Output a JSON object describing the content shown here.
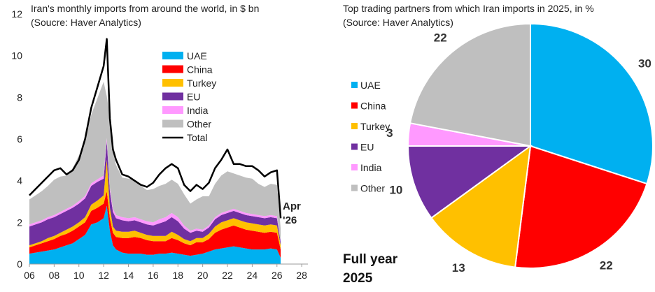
{
  "chart_data": [
    {
      "type": "area",
      "title_line1": "Iran's  monthly imports from around the world, in $ bn",
      "title_line2": "(Soucre: Haver Analytics)",
      "xlabel": "",
      "ylabel": "",
      "ylim": [
        0,
        12
      ],
      "xlim": [
        2006,
        2028.5
      ],
      "y_ticks": [
        0,
        2,
        4,
        6,
        8,
        10,
        12
      ],
      "x_ticks": [
        {
          "v": 2006,
          "label": "06"
        },
        {
          "v": 2008,
          "label": "08"
        },
        {
          "v": 2010,
          "label": "10"
        },
        {
          "v": 2012,
          "label": "12"
        },
        {
          "v": 2014,
          "label": "14"
        },
        {
          "v": 2016,
          "label": "16"
        },
        {
          "v": 2018,
          "label": "18"
        },
        {
          "v": 2020,
          "label": "20"
        },
        {
          "v": 2022,
          "label": "22"
        },
        {
          "v": 2024,
          "label": "24"
        },
        {
          "v": 2026,
          "label": "26"
        },
        {
          "v": 2028,
          "label": "28"
        }
      ],
      "grid": false,
      "legend_position": "upper-center",
      "annotation_line1": "Apr",
      "annotation_line2": "'26",
      "x": [
        2006.0,
        2006.5,
        2007.0,
        2007.5,
        2008.0,
        2008.5,
        2009.0,
        2009.5,
        2010.0,
        2010.5,
        2011.0,
        2011.5,
        2012.0,
        2012.25,
        2012.5,
        2012.75,
        2013.0,
        2013.5,
        2014.0,
        2014.5,
        2015.0,
        2015.5,
        2016.0,
        2016.5,
        2017.0,
        2017.5,
        2018.0,
        2018.5,
        2019.0,
        2019.5,
        2020.0,
        2020.5,
        2021.0,
        2021.5,
        2022.0,
        2022.5,
        2023.0,
        2023.5,
        2024.0,
        2024.5,
        2025.0,
        2025.5,
        2026.0,
        2026.3
      ],
      "series": [
        {
          "name": "UAE",
          "color": "#00B0F0",
          "values": [
            0.5,
            0.55,
            0.6,
            0.65,
            0.7,
            0.8,
            0.9,
            1.0,
            1.2,
            1.4,
            1.9,
            2.0,
            2.2,
            2.8,
            1.6,
            0.9,
            0.7,
            0.55,
            0.5,
            0.5,
            0.5,
            0.45,
            0.45,
            0.5,
            0.5,
            0.55,
            0.5,
            0.45,
            0.4,
            0.45,
            0.5,
            0.6,
            0.7,
            0.75,
            0.8,
            0.85,
            0.8,
            0.75,
            0.7,
            0.7,
            0.7,
            0.75,
            0.7,
            0.3
          ]
        },
        {
          "name": "China",
          "color": "#FF0000",
          "values": [
            0.3,
            0.35,
            0.4,
            0.45,
            0.5,
            0.55,
            0.55,
            0.6,
            0.6,
            0.6,
            0.65,
            0.7,
            0.7,
            0.7,
            0.6,
            0.6,
            0.6,
            0.7,
            0.75,
            0.8,
            0.75,
            0.7,
            0.65,
            0.6,
            0.6,
            0.7,
            0.65,
            0.55,
            0.5,
            0.6,
            0.55,
            0.6,
            0.8,
            0.9,
            0.95,
            1.0,
            0.95,
            0.9,
            0.9,
            0.85,
            0.8,
            0.8,
            0.8,
            0.4
          ]
        },
        {
          "name": "Turkey",
          "color": "#FFC000",
          "values": [
            0.1,
            0.1,
            0.1,
            0.15,
            0.15,
            0.15,
            0.2,
            0.2,
            0.2,
            0.25,
            0.3,
            0.35,
            0.4,
            1.5,
            0.5,
            0.3,
            0.3,
            0.3,
            0.3,
            0.3,
            0.25,
            0.25,
            0.25,
            0.25,
            0.25,
            0.3,
            0.25,
            0.2,
            0.2,
            0.2,
            0.2,
            0.25,
            0.3,
            0.35,
            0.35,
            0.35,
            0.35,
            0.35,
            0.35,
            0.35,
            0.35,
            0.35,
            0.35,
            0.2
          ]
        },
        {
          "name": "EU",
          "color": "#7030A0",
          "values": [
            0.9,
            0.9,
            0.9,
            0.9,
            0.9,
            0.9,
            0.9,
            0.9,
            0.9,
            0.9,
            0.9,
            0.9,
            0.8,
            0.9,
            0.8,
            0.7,
            0.6,
            0.55,
            0.5,
            0.5,
            0.5,
            0.5,
            0.5,
            0.6,
            0.7,
            0.7,
            0.65,
            0.5,
            0.4,
            0.35,
            0.3,
            0.3,
            0.35,
            0.35,
            0.35,
            0.35,
            0.35,
            0.35,
            0.35,
            0.35,
            0.35,
            0.35,
            0.35,
            0.15
          ]
        },
        {
          "name": "India",
          "color": "#FF99FF",
          "values": [
            0.1,
            0.1,
            0.1,
            0.1,
            0.1,
            0.1,
            0.1,
            0.1,
            0.12,
            0.12,
            0.12,
            0.12,
            0.15,
            0.15,
            0.15,
            0.15,
            0.15,
            0.15,
            0.15,
            0.15,
            0.15,
            0.15,
            0.15,
            0.2,
            0.2,
            0.2,
            0.2,
            0.15,
            0.1,
            0.1,
            0.1,
            0.1,
            0.1,
            0.1,
            0.1,
            0.1,
            0.1,
            0.1,
            0.1,
            0.1,
            0.1,
            0.1,
            0.1,
            0.05
          ]
        },
        {
          "name": "Other",
          "color": "#BFBFBF",
          "values": [
            1.2,
            1.3,
            1.4,
            1.5,
            1.7,
            1.7,
            1.6,
            1.8,
            2.2,
            2.6,
            3.3,
            3.9,
            4.5,
            2.0,
            3.4,
            2.8,
            2.4,
            1.9,
            1.9,
            1.8,
            1.6,
            1.5,
            1.6,
            1.6,
            1.6,
            1.6,
            1.6,
            1.5,
            1.3,
            1.4,
            1.6,
            1.4,
            1.6,
            1.8,
            1.9,
            1.7,
            1.7,
            1.7,
            1.7,
            1.5,
            1.4,
            1.5,
            1.5,
            0.6
          ]
        }
      ],
      "total": {
        "name": "Total",
        "color": "#000000",
        "values": [
          3.3,
          3.6,
          3.9,
          4.2,
          4.5,
          4.6,
          4.3,
          4.5,
          5.0,
          6.0,
          7.5,
          8.5,
          9.5,
          10.8,
          7.0,
          5.5,
          5.0,
          4.3,
          4.2,
          4.0,
          3.8,
          3.7,
          3.9,
          4.3,
          4.6,
          4.8,
          4.6,
          3.8,
          3.5,
          3.8,
          3.6,
          3.9,
          4.6,
          5.0,
          5.5,
          4.8,
          4.8,
          4.7,
          4.7,
          4.5,
          4.2,
          4.4,
          4.5,
          2.2
        ]
      }
    },
    {
      "type": "pie",
      "title_line1": "Top trading partners from which Iran imports in 2025, in %",
      "title_line2": "(Source: Haver Analytics)",
      "slices": [
        {
          "name": "UAE",
          "value": 30,
          "label": "30",
          "color": "#00B0F0"
        },
        {
          "name": "China",
          "value": 22,
          "label": "22",
          "color": "#FF0000"
        },
        {
          "name": "Turkey",
          "value": 13,
          "label": "13",
          "color": "#FFC000"
        },
        {
          "name": "EU",
          "value": 10,
          "label": "10",
          "color": "#7030A0"
        },
        {
          "name": "India",
          "value": 3,
          "label": "3",
          "color": "#FF99FF"
        },
        {
          "name": "Other",
          "value": 22,
          "label": "22",
          "color": "#BFBFBF"
        }
      ],
      "start": "12 o'clock, clockwise",
      "legend_position": "left",
      "footnote_line1": "Full year",
      "footnote_line2": "2025"
    }
  ]
}
